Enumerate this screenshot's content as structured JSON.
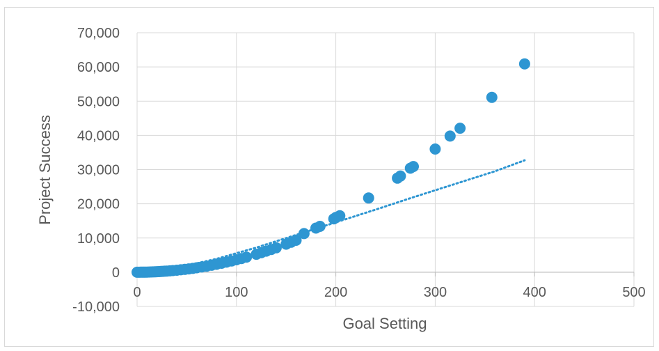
{
  "chart_data": {
    "type": "scatter",
    "title": "",
    "xlabel": "Goal Setting",
    "ylabel": "Project Success",
    "xlim": [
      0,
      500
    ],
    "ylim": [
      -10000,
      70000
    ],
    "x_ticks": [
      "0",
      "100",
      "200",
      "300",
      "400",
      "500"
    ],
    "y_ticks": [
      "-10,000",
      "0",
      "10,000",
      "20,000",
      "30,000",
      "40,000",
      "50,000",
      "60,000",
      "70,000"
    ],
    "grid": true,
    "legend": "none",
    "colors": {
      "points": "#2e96d2",
      "trendline": "#2e96d2",
      "grid": "#d9d9d9",
      "text": "#595959"
    },
    "series": [
      {
        "x": [
          0,
          2,
          4,
          6,
          8,
          10,
          12,
          14,
          16,
          18,
          20,
          22,
          24,
          26,
          28,
          30,
          33,
          36,
          40,
          44,
          48,
          52,
          56,
          60,
          65,
          70,
          75,
          80,
          85,
          90,
          95,
          100,
          105,
          110,
          120,
          125,
          130,
          135,
          140,
          150,
          155,
          160,
          168,
          180,
          184,
          198,
          200,
          204,
          233,
          262,
          265,
          275,
          278,
          300,
          315,
          325,
          357,
          390
        ],
        "y": [
          0,
          2,
          6,
          14,
          25,
          40,
          58,
          78,
          100,
          125,
          155,
          185,
          220,
          255,
          295,
          340,
          405,
          480,
          580,
          700,
          830,
          970,
          1120,
          1290,
          1520,
          1770,
          2030,
          2320,
          2620,
          2940,
          3270,
          3640,
          4010,
          4410,
          5250,
          5700,
          6170,
          6650,
          7140,
          8200,
          8760,
          9340,
          11300,
          12900,
          13400,
          15600,
          16000,
          16500,
          21700,
          27500,
          28100,
          30400,
          30900,
          36000,
          39800,
          42100,
          51100,
          60900
        ]
      }
    ],
    "trendline": {
      "style": "dotted",
      "x": [
        40,
        80,
        120,
        160,
        200,
        240,
        280,
        320,
        360,
        390
      ],
      "y": [
        1300,
        3900,
        7200,
        10900,
        14600,
        18300,
        22100,
        25800,
        29500,
        32700
      ]
    }
  }
}
